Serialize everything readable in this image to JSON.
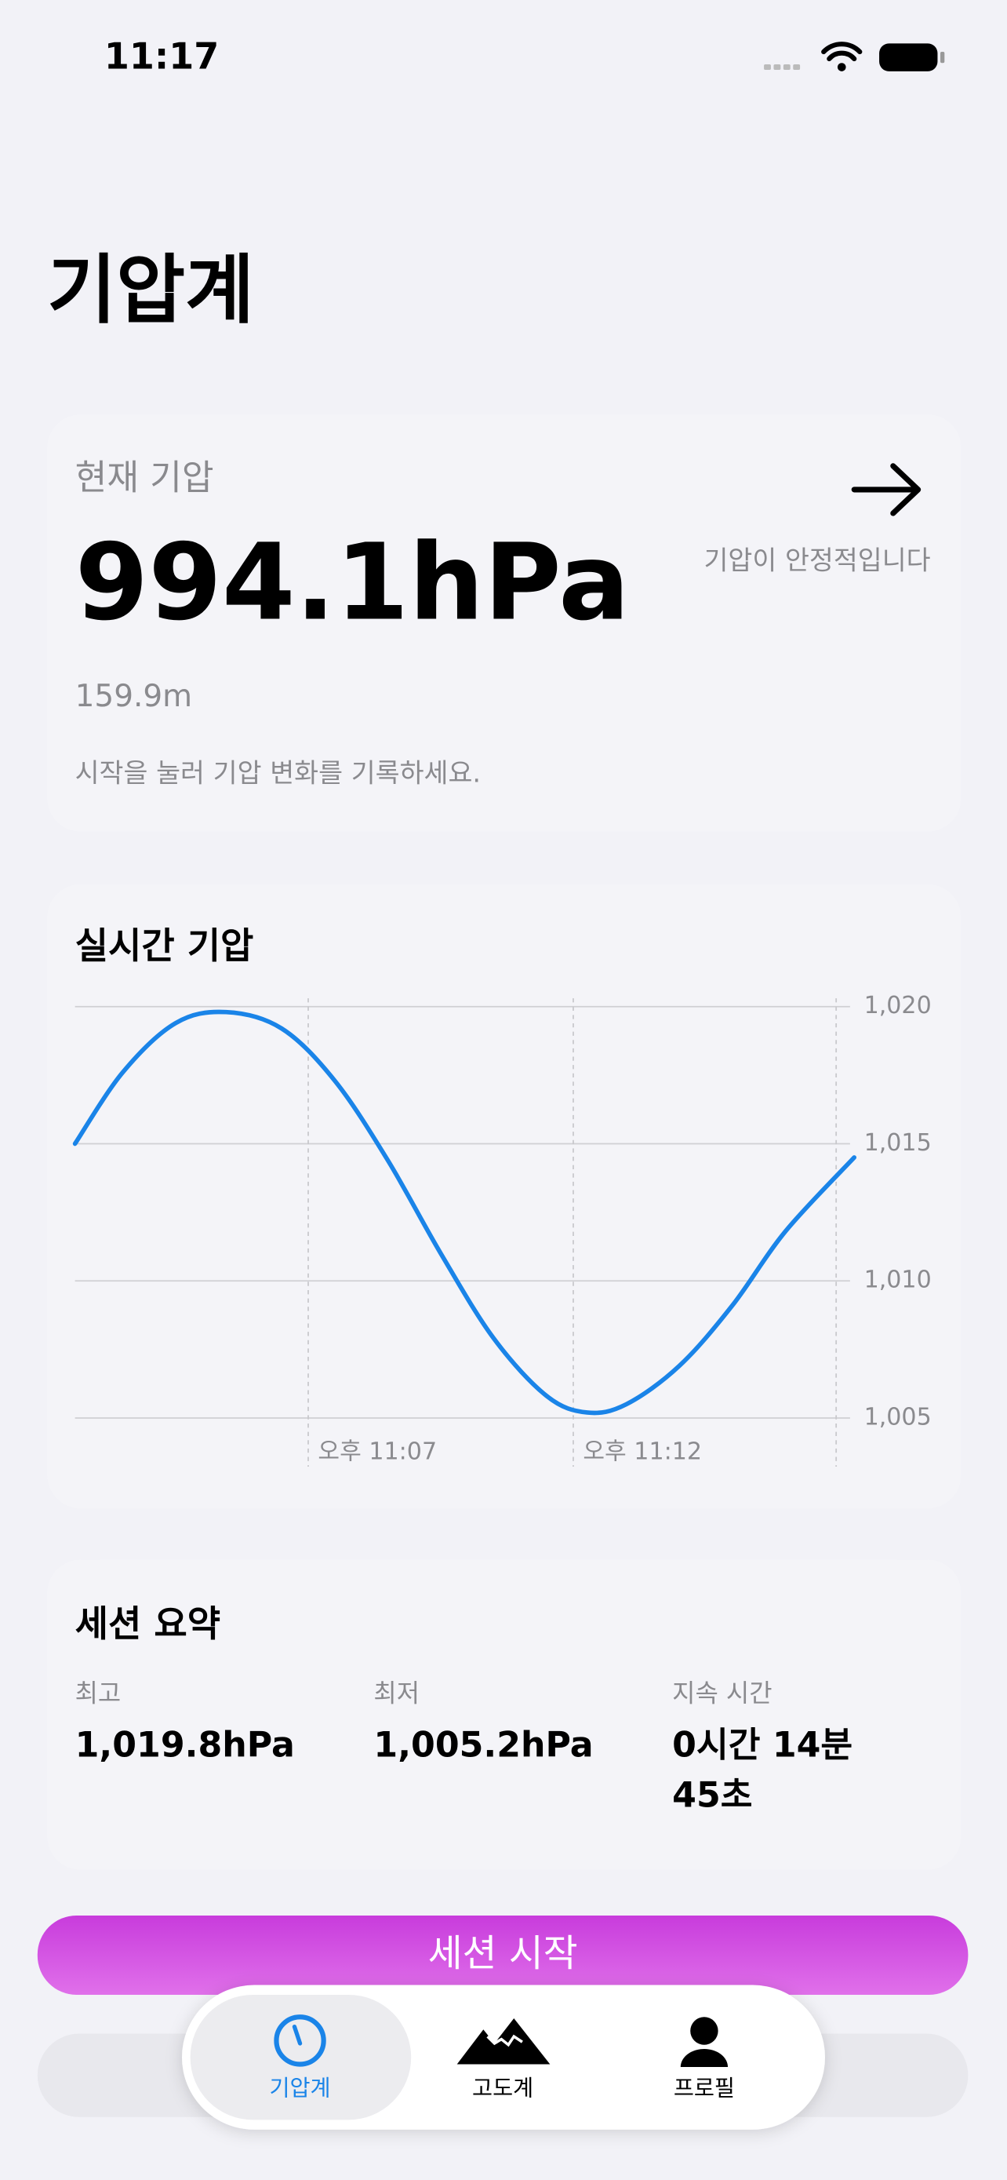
{
  "status_bar": {
    "time": "11:17"
  },
  "header": {
    "title": "기압계"
  },
  "current": {
    "label": "현재 기압",
    "pressure": "994.1hPa",
    "altitude": "159.9m",
    "hint": "시작을 눌러 기압 변화를 기록하세요.",
    "trend": "기압이 안정적입니다"
  },
  "chart_data": {
    "type": "line",
    "title": "실시간 기압",
    "x": [
      2.6,
      3.5,
      4.5,
      5.45,
      6.5,
      7.5,
      8.5,
      9.5,
      10.5,
      11.5,
      12.26,
      13,
      14,
      15,
      16,
      17.3
    ],
    "series": [
      {
        "name": "기압",
        "color": "#1a84e8",
        "values": [
          1015.0,
          1017.6,
          1019.4,
          1019.8,
          1019.2,
          1017.3,
          1014.4,
          1011.0,
          1007.9,
          1005.8,
          1005.2,
          1005.5,
          1006.9,
          1009.1,
          1011.8,
          1014.5
        ]
      }
    ],
    "xlim": [
      2.6,
      17.3
    ],
    "xticks": [
      {
        "value": 7,
        "label": "오후 11:07"
      },
      {
        "value": 12,
        "label": "오후 11:12"
      }
    ],
    "ylim": [
      1005,
      1020
    ],
    "yticks": [
      {
        "value": 1005,
        "label": "1,005"
      },
      {
        "value": 1010,
        "label": "1,010"
      },
      {
        "value": 1015,
        "label": "1,015"
      },
      {
        "value": 1020,
        "label": "1,020"
      }
    ],
    "grid": true
  },
  "summary": {
    "title": "세션 요약",
    "items": [
      {
        "label": "최고",
        "value": "1,019.8hPa"
      },
      {
        "label": "최저",
        "value": "1,005.2hPa"
      },
      {
        "label": "지속 시간",
        "value_lines": [
          "0시간 14분",
          "45초"
        ]
      }
    ]
  },
  "button": {
    "label": "세션 시작"
  },
  "tabs": [
    {
      "label": "기압계"
    },
    {
      "label": "고도계"
    },
    {
      "label": "프로필"
    }
  ]
}
